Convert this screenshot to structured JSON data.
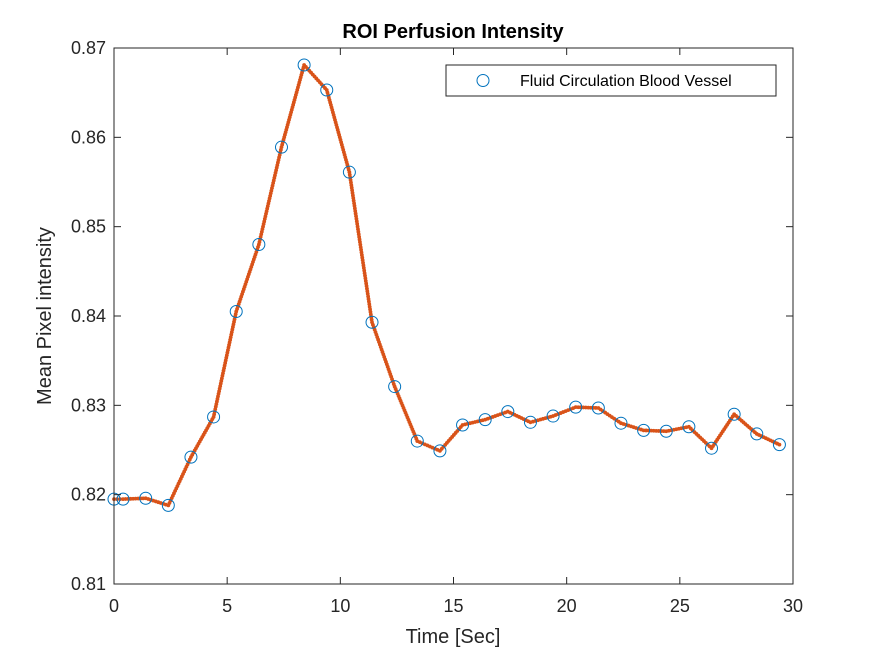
{
  "chart_data": {
    "type": "line",
    "title": "ROI Perfusion Intensity",
    "xlabel": "Time [Sec]",
    "ylabel": "Mean Pixel intensity",
    "xlim": [
      0,
      30
    ],
    "ylim": [
      0.81,
      0.87
    ],
    "xticks": [
      0,
      5,
      10,
      15,
      20,
      25,
      30
    ],
    "xtick_labels": [
      "0",
      "5",
      "10",
      "15",
      "20",
      "25",
      "30"
    ],
    "yticks": [
      0.81,
      0.82,
      0.83,
      0.84,
      0.85,
      0.86,
      0.87
    ],
    "ytick_labels": [
      "0.81",
      "0.82",
      "0.83",
      "0.84",
      "0.85",
      "0.86",
      "0.87"
    ],
    "grid": false,
    "legend_position": "top-right",
    "series": [
      {
        "name": "Fluid Circulation Blood Vessel",
        "marker": "circle",
        "color": "#0072BD",
        "x": [
          0,
          0.4,
          1.4,
          2.4,
          3.4,
          4.4,
          5.4,
          6.4,
          7.4,
          8.4,
          9.4,
          10.4,
          11.4,
          12.4,
          13.4,
          14.4,
          15.4,
          16.4,
          17.4,
          18.4,
          19.4,
          20.4,
          21.4,
          22.4,
          23.4,
          24.4,
          25.4,
          26.4,
          27.4,
          28.4,
          29.4
        ],
        "y": [
          0.8195,
          0.8195,
          0.8196,
          0.8188,
          0.8242,
          0.8287,
          0.8405,
          0.848,
          0.8589,
          0.8681,
          0.8653,
          0.8561,
          0.8393,
          0.8321,
          0.826,
          0.8249,
          0.8278,
          0.8284,
          0.8293,
          0.8281,
          0.8288,
          0.8298,
          0.8297,
          0.828,
          0.8272,
          0.8271,
          0.8276,
          0.8252,
          0.829,
          0.8268,
          0.8256
        ]
      },
      {
        "marker": "dot-line",
        "color": "#D95319",
        "x": [
          0,
          0.4,
          1.4,
          2.4,
          3.4,
          4.4,
          5.4,
          6.4,
          7.4,
          8.4,
          9.4,
          10.4,
          11.4,
          12.4,
          13.4,
          14.4,
          15.4,
          16.4,
          17.4,
          18.4,
          19.4,
          20.4,
          21.4,
          22.4,
          23.4,
          24.4,
          25.4,
          26.4,
          27.4,
          28.4,
          29.4
        ],
        "y": [
          0.8195,
          0.8195,
          0.8196,
          0.8188,
          0.8242,
          0.8287,
          0.8405,
          0.848,
          0.8589,
          0.8681,
          0.8653,
          0.8561,
          0.8393,
          0.8321,
          0.826,
          0.8249,
          0.8278,
          0.8284,
          0.8293,
          0.8281,
          0.8288,
          0.8298,
          0.8297,
          0.828,
          0.8272,
          0.8271,
          0.8276,
          0.8252,
          0.829,
          0.8268,
          0.8256
        ]
      }
    ]
  }
}
